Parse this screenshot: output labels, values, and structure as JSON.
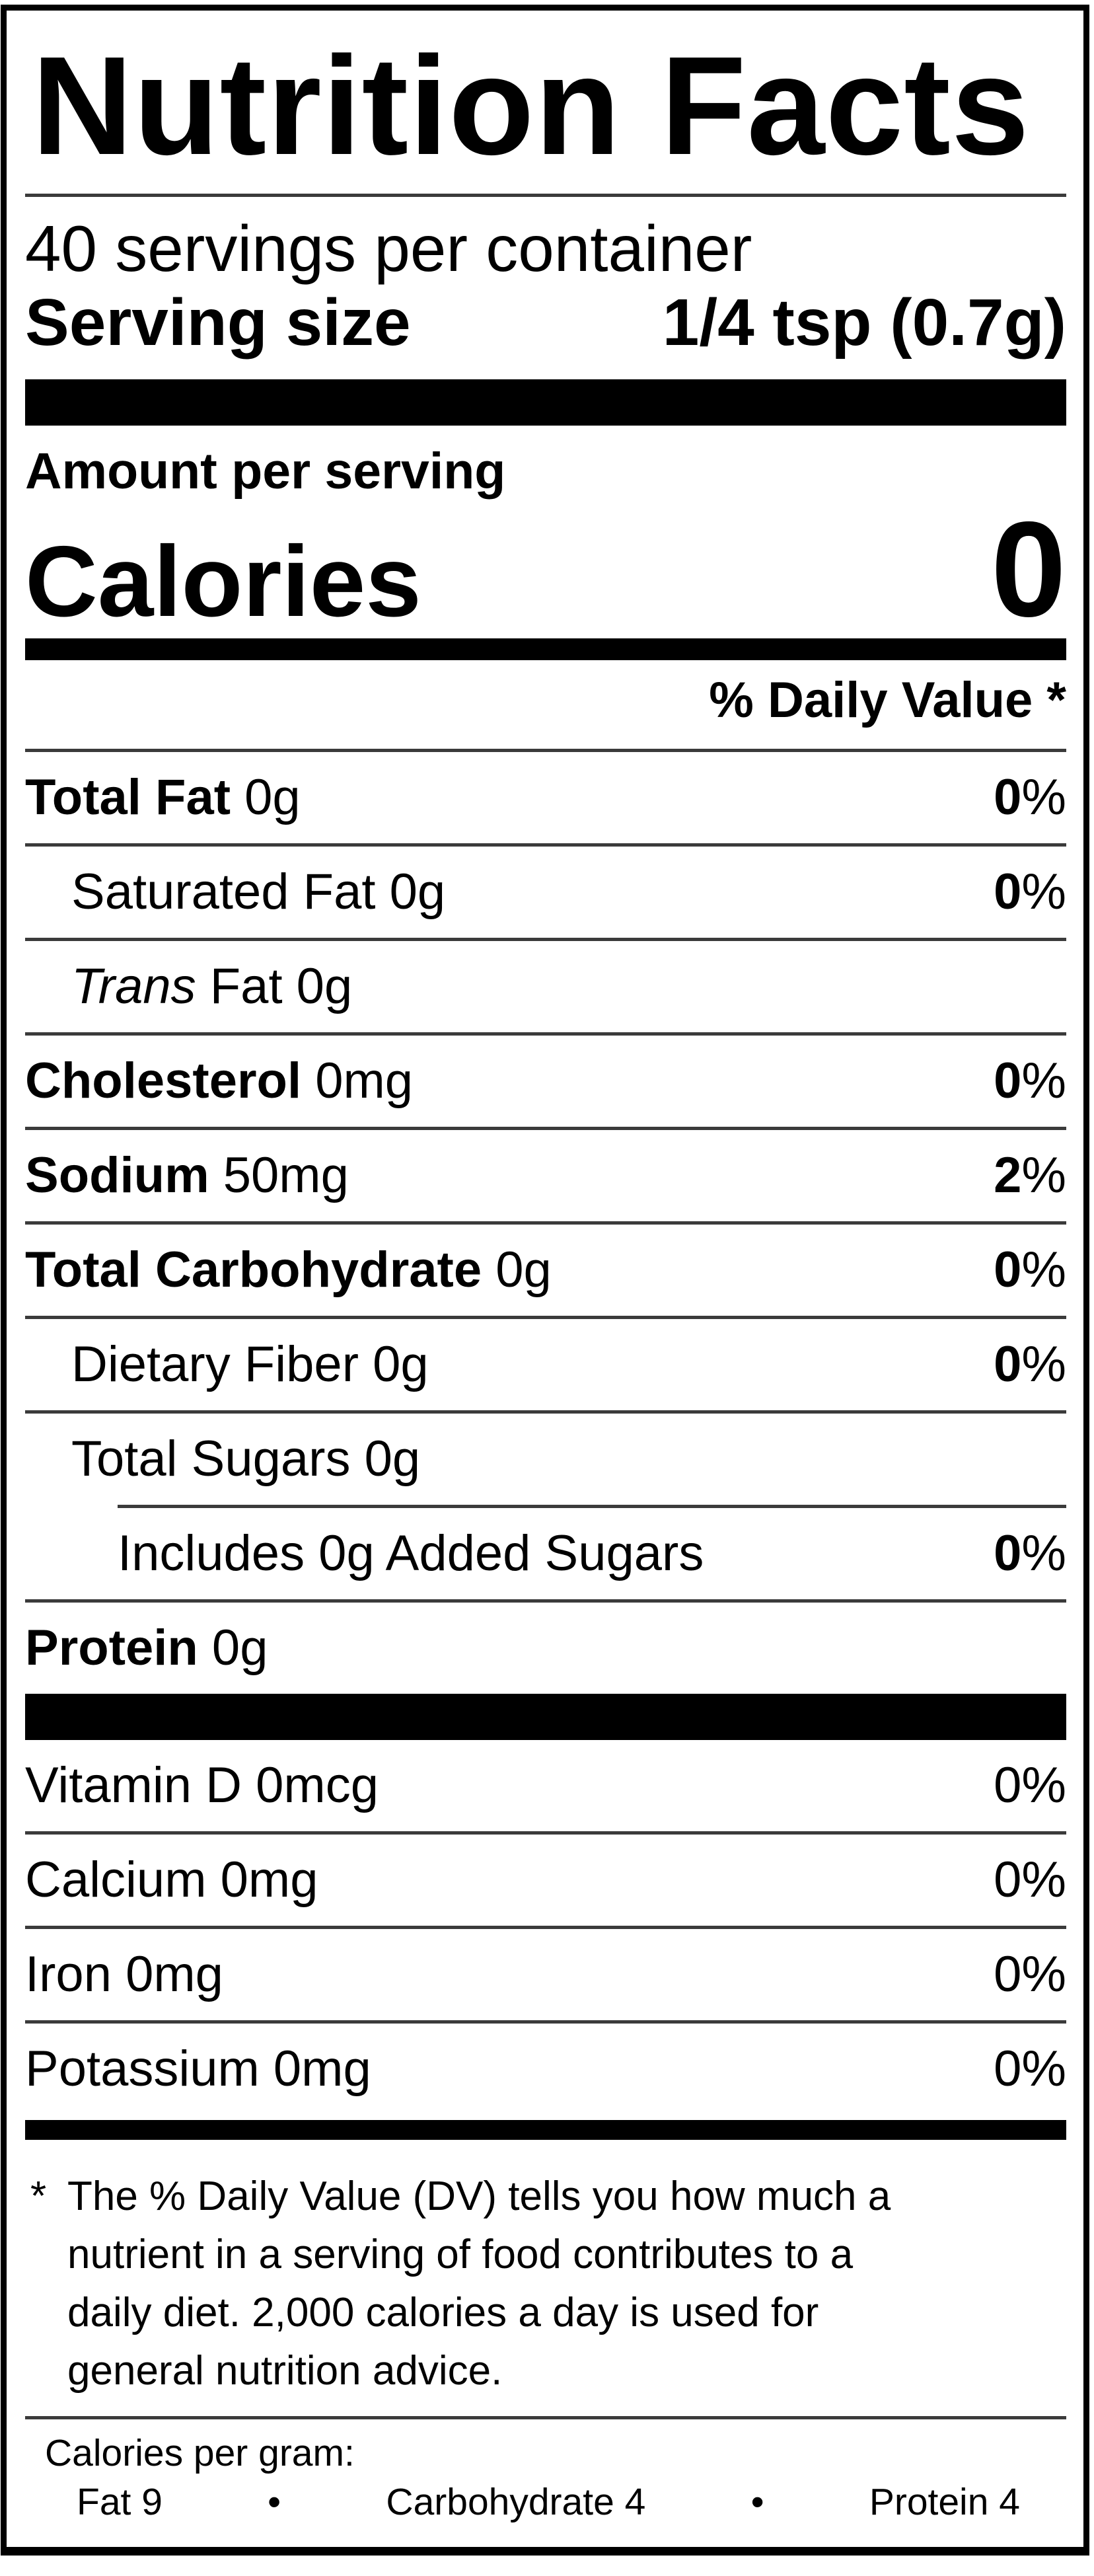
{
  "title": "Nutrition Facts",
  "servings_per_container": "40 servings per container",
  "serving_size": {
    "label": "Serving size",
    "value": "1/4 tsp (0.7g)"
  },
  "amount_per_serving": "Amount per serving",
  "calories": {
    "label": "Calories",
    "value": "0"
  },
  "daily_value_header": "% Daily Value *",
  "nutrients": [
    {
      "segments": [
        {
          "text": "Total Fat",
          "bold": true
        },
        {
          "text": " 0g"
        }
      ],
      "indent": 0,
      "dv": "0%",
      "dv_bold": true,
      "divider": "full"
    },
    {
      "segments": [
        {
          "text": "Saturated Fat 0g"
        }
      ],
      "indent": 1,
      "dv": "0%",
      "dv_bold": true,
      "divider": "full"
    },
    {
      "segments": [
        {
          "text": "Trans",
          "italic": true
        },
        {
          "text": " Fat 0g"
        }
      ],
      "indent": 1,
      "dv": null,
      "dv_bold": false,
      "divider": "full"
    },
    {
      "segments": [
        {
          "text": "Cholesterol",
          "bold": true
        },
        {
          "text": " 0mg"
        }
      ],
      "indent": 0,
      "dv": "0%",
      "dv_bold": true,
      "divider": "full"
    },
    {
      "segments": [
        {
          "text": "Sodium",
          "bold": true
        },
        {
          "text": " 50mg"
        }
      ],
      "indent": 0,
      "dv": "2%",
      "dv_bold": true,
      "divider": "full"
    },
    {
      "segments": [
        {
          "text": "Total Carbohydrate",
          "bold": true
        },
        {
          "text": " 0g"
        }
      ],
      "indent": 0,
      "dv": "0%",
      "dv_bold": true,
      "divider": "full"
    },
    {
      "segments": [
        {
          "text": "Dietary Fiber 0g"
        }
      ],
      "indent": 1,
      "dv": "0%",
      "dv_bold": true,
      "divider": "full"
    },
    {
      "segments": [
        {
          "text": "Total Sugars 0g"
        }
      ],
      "indent": 1,
      "dv": null,
      "dv_bold": false,
      "divider": "indent"
    },
    {
      "segments": [
        {
          "text": "Includes 0g Added Sugars"
        }
      ],
      "indent": 2,
      "dv": "0%",
      "dv_bold": true,
      "divider": "full"
    },
    {
      "segments": [
        {
          "text": "Protein",
          "bold": true
        },
        {
          "text": " 0g"
        }
      ],
      "indent": 0,
      "dv": null,
      "dv_bold": false,
      "divider": "none"
    }
  ],
  "vitamins": [
    {
      "segments": [
        {
          "text": "Vitamin D 0mcg"
        }
      ],
      "indent": 0,
      "dv": "0%",
      "dv_bold": false,
      "divider": "full"
    },
    {
      "segments": [
        {
          "text": "Calcium 0mg"
        }
      ],
      "indent": 0,
      "dv": "0%",
      "dv_bold": false,
      "divider": "full"
    },
    {
      "segments": [
        {
          "text": "Iron 0mg"
        }
      ],
      "indent": 0,
      "dv": "0%",
      "dv_bold": false,
      "divider": "full"
    },
    {
      "segments": [
        {
          "text": "Potassium 0mg"
        }
      ],
      "indent": 0,
      "dv": "0%",
      "dv_bold": false,
      "divider": "none"
    }
  ],
  "footnote": {
    "asterisk": "*",
    "lines": [
      "The % Daily Value (DV) tells you how much a",
      "nutrient in a serving of food contributes to a",
      "daily diet. 2,000 calories a day is used for",
      "general nutrition advice."
    ]
  },
  "calories_per_gram": {
    "heading": "Calories per gram:",
    "bullet": "•",
    "items": [
      "Fat 9",
      "Carbohydrate 4",
      "Protein 4"
    ]
  }
}
